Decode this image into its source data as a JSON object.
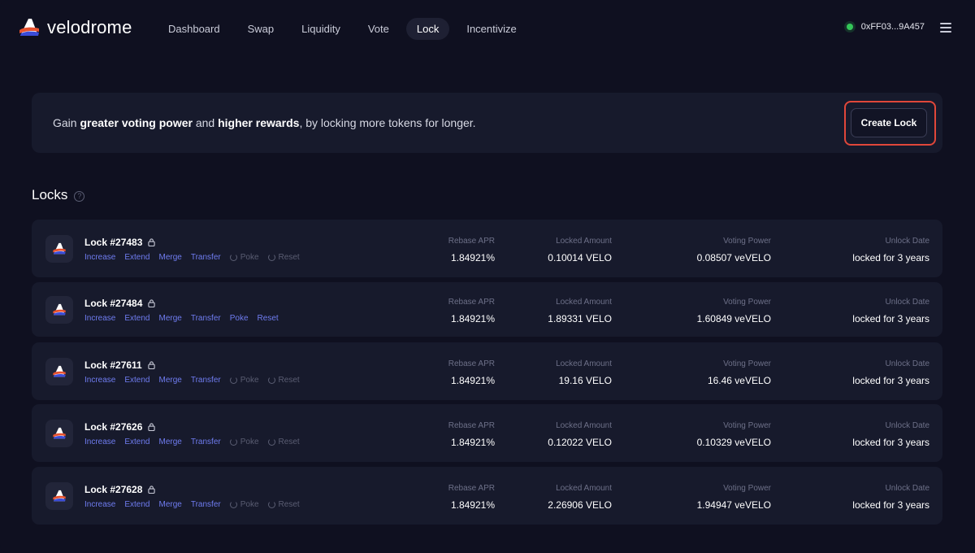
{
  "brand": {
    "name": "velodrome"
  },
  "nav": [
    {
      "label": "Dashboard"
    },
    {
      "label": "Swap"
    },
    {
      "label": "Liquidity"
    },
    {
      "label": "Vote"
    },
    {
      "label": "Lock"
    },
    {
      "label": "Incentivize"
    }
  ],
  "active_nav": "Lock",
  "wallet": {
    "address": "0xFF03...9A457",
    "status_color": "#34c759"
  },
  "banner": {
    "text_1": "Gain ",
    "bold_1": "greater voting power",
    "text_2": " and ",
    "bold_2": "higher rewards",
    "text_3": ", by locking more tokens for longer.",
    "create_button": "Create Lock"
  },
  "locks_section": {
    "title": "Locks",
    "help_icon": "?"
  },
  "columns": {
    "apr": "Rebase APR",
    "amount": "Locked Amount",
    "power": "Voting Power",
    "unlock": "Unlock Date"
  },
  "actions_labels": {
    "increase": "Increase",
    "extend": "Extend",
    "merge": "Merge",
    "transfer": "Transfer",
    "poke": "Poke",
    "reset": "Reset"
  },
  "locks": [
    {
      "title": "Lock #27483",
      "apr": "1.84921%",
      "amount": "0.10014 VELO",
      "power": "0.08507 veVELO",
      "unlock": "locked for 3 years",
      "poke_reset_enabled": false
    },
    {
      "title": "Lock #27484",
      "apr": "1.84921%",
      "amount": "1.89331 VELO",
      "power": "1.60849 veVELO",
      "unlock": "locked for 3 years",
      "poke_reset_enabled": true
    },
    {
      "title": "Lock #27611",
      "apr": "1.84921%",
      "amount": "19.16 VELO",
      "power": "16.46 veVELO",
      "unlock": "locked for 3 years",
      "poke_reset_enabled": false
    },
    {
      "title": "Lock #27626",
      "apr": "1.84921%",
      "amount": "0.12022 VELO",
      "power": "0.10329 veVELO",
      "unlock": "locked for 3 years",
      "poke_reset_enabled": false
    },
    {
      "title": "Lock #27628",
      "apr": "1.84921%",
      "amount": "2.26906 VELO",
      "power": "1.94947 veVELO",
      "unlock": "locked for 3 years",
      "poke_reset_enabled": false
    }
  ],
  "colors": {
    "background": "#0f1020",
    "card": "#171a2c",
    "accent_link": "#6f7cf0",
    "highlight": "#e0473a"
  }
}
